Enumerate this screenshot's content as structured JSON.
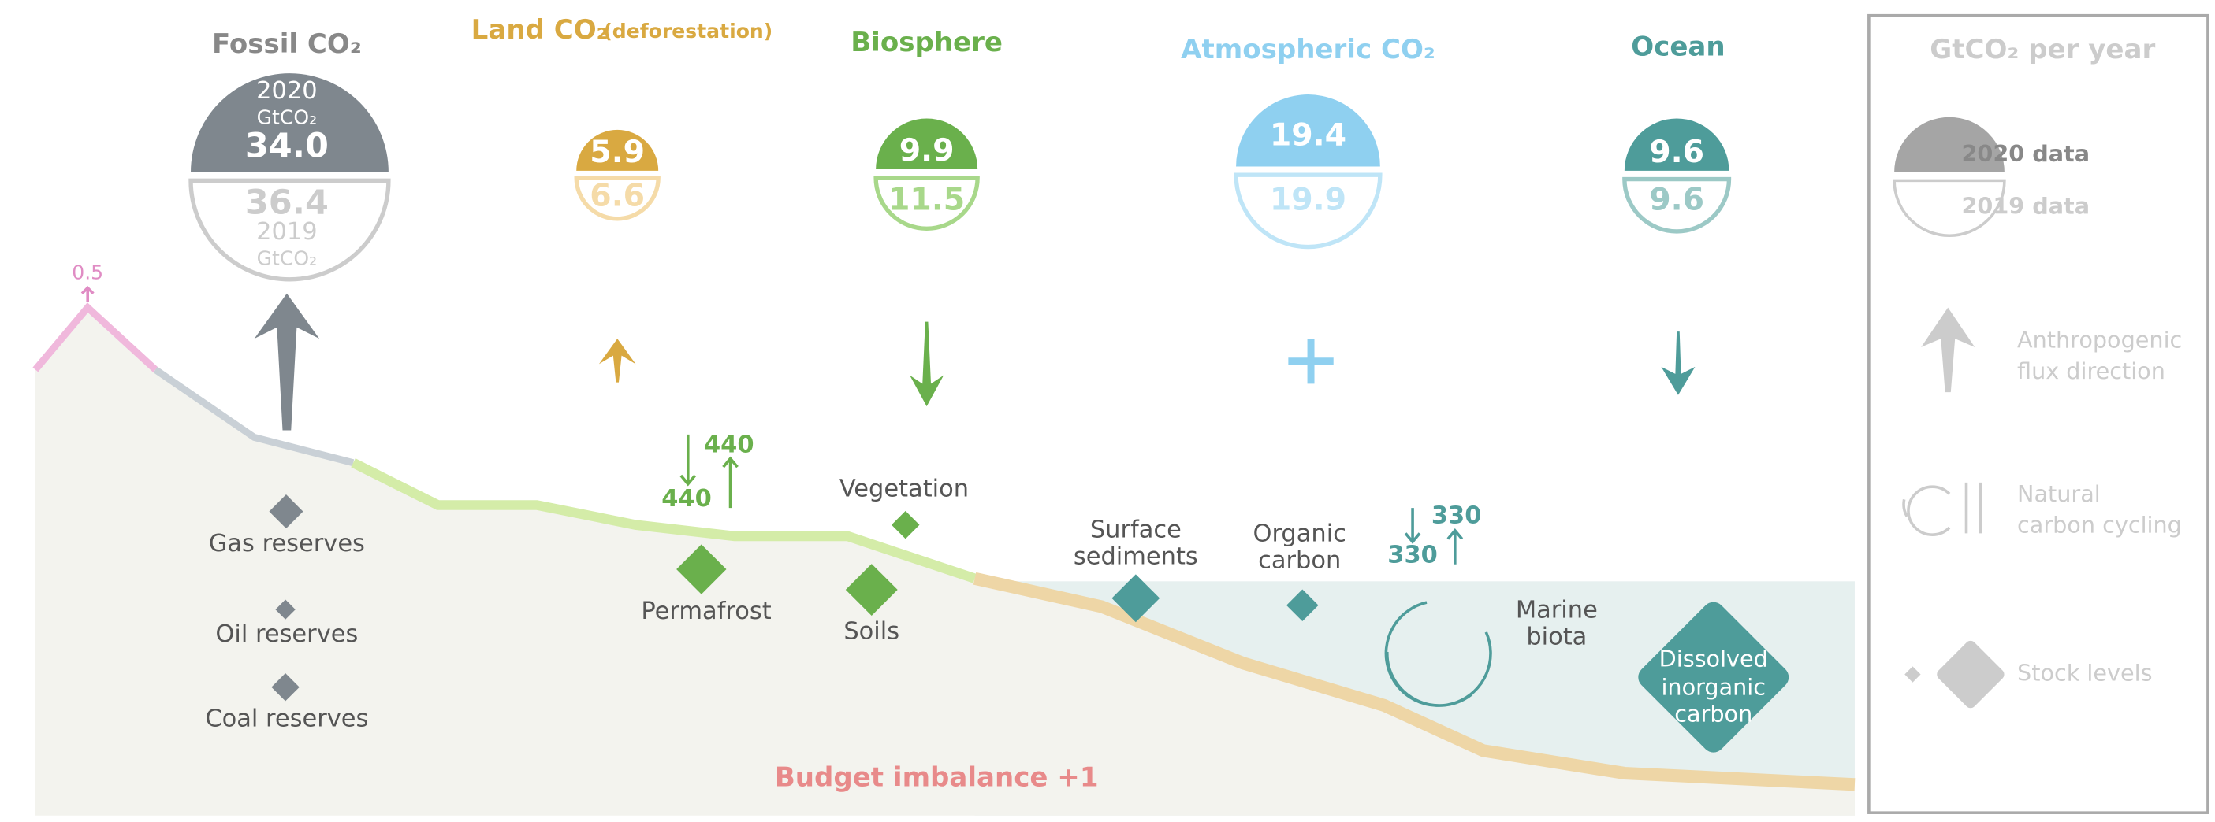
{
  "fossil": {
    "title": "Fossil CO₂",
    "year_2020": "2020",
    "unit_2020": "GtCO₂",
    "value_2020": "34.0",
    "value_2019": "36.4",
    "year_2019": "2019",
    "unit_2019": "GtCO₂"
  },
  "land": {
    "title": "Land  CO₂",
    "note": "(deforestation)",
    "value_2020": "5.9",
    "value_2019": "6.6"
  },
  "biosphere": {
    "title": "Biosphere",
    "value_2020": "9.9",
    "value_2019": "11.5"
  },
  "atmosphere": {
    "title": "Atmospheric CO₂",
    "value_2020": "19.4",
    "value_2019": "19.9"
  },
  "ocean": {
    "title": "Ocean",
    "value_2020": "9.6",
    "value_2019": "9.6"
  },
  "volcano": "0.5",
  "land_cycle": {
    "down": "440",
    "up": "440"
  },
  "ocean_cycle": {
    "down": "330",
    "up": "330"
  },
  "stocks": {
    "gas": [
      "Gas reserves"
    ],
    "oil": [
      "Oil reserves"
    ],
    "coal": [
      "Coal reserves"
    ],
    "permafrost": [
      "Permafrost"
    ],
    "vegetation": [
      "Vegetation"
    ],
    "soils": [
      "Soils"
    ],
    "sediments": [
      "Surface",
      "sediments"
    ],
    "organic": [
      "Organic",
      "carbon"
    ],
    "biota": [
      "Marine",
      "biota"
    ],
    "dissolved": [
      "Dissolved",
      "inorganic",
      "carbon"
    ]
  },
  "budget": "Budget imbalance +1",
  "legend": {
    "title": "GtCO₂ per year",
    "data_2020": "2020 data",
    "data_2019": "2019 data",
    "anthropogenic": [
      "Anthropogenic",
      "flux direction"
    ],
    "natural": [
      "Natural",
      "carbon cycling"
    ],
    "stock": "Stock levels"
  }
}
